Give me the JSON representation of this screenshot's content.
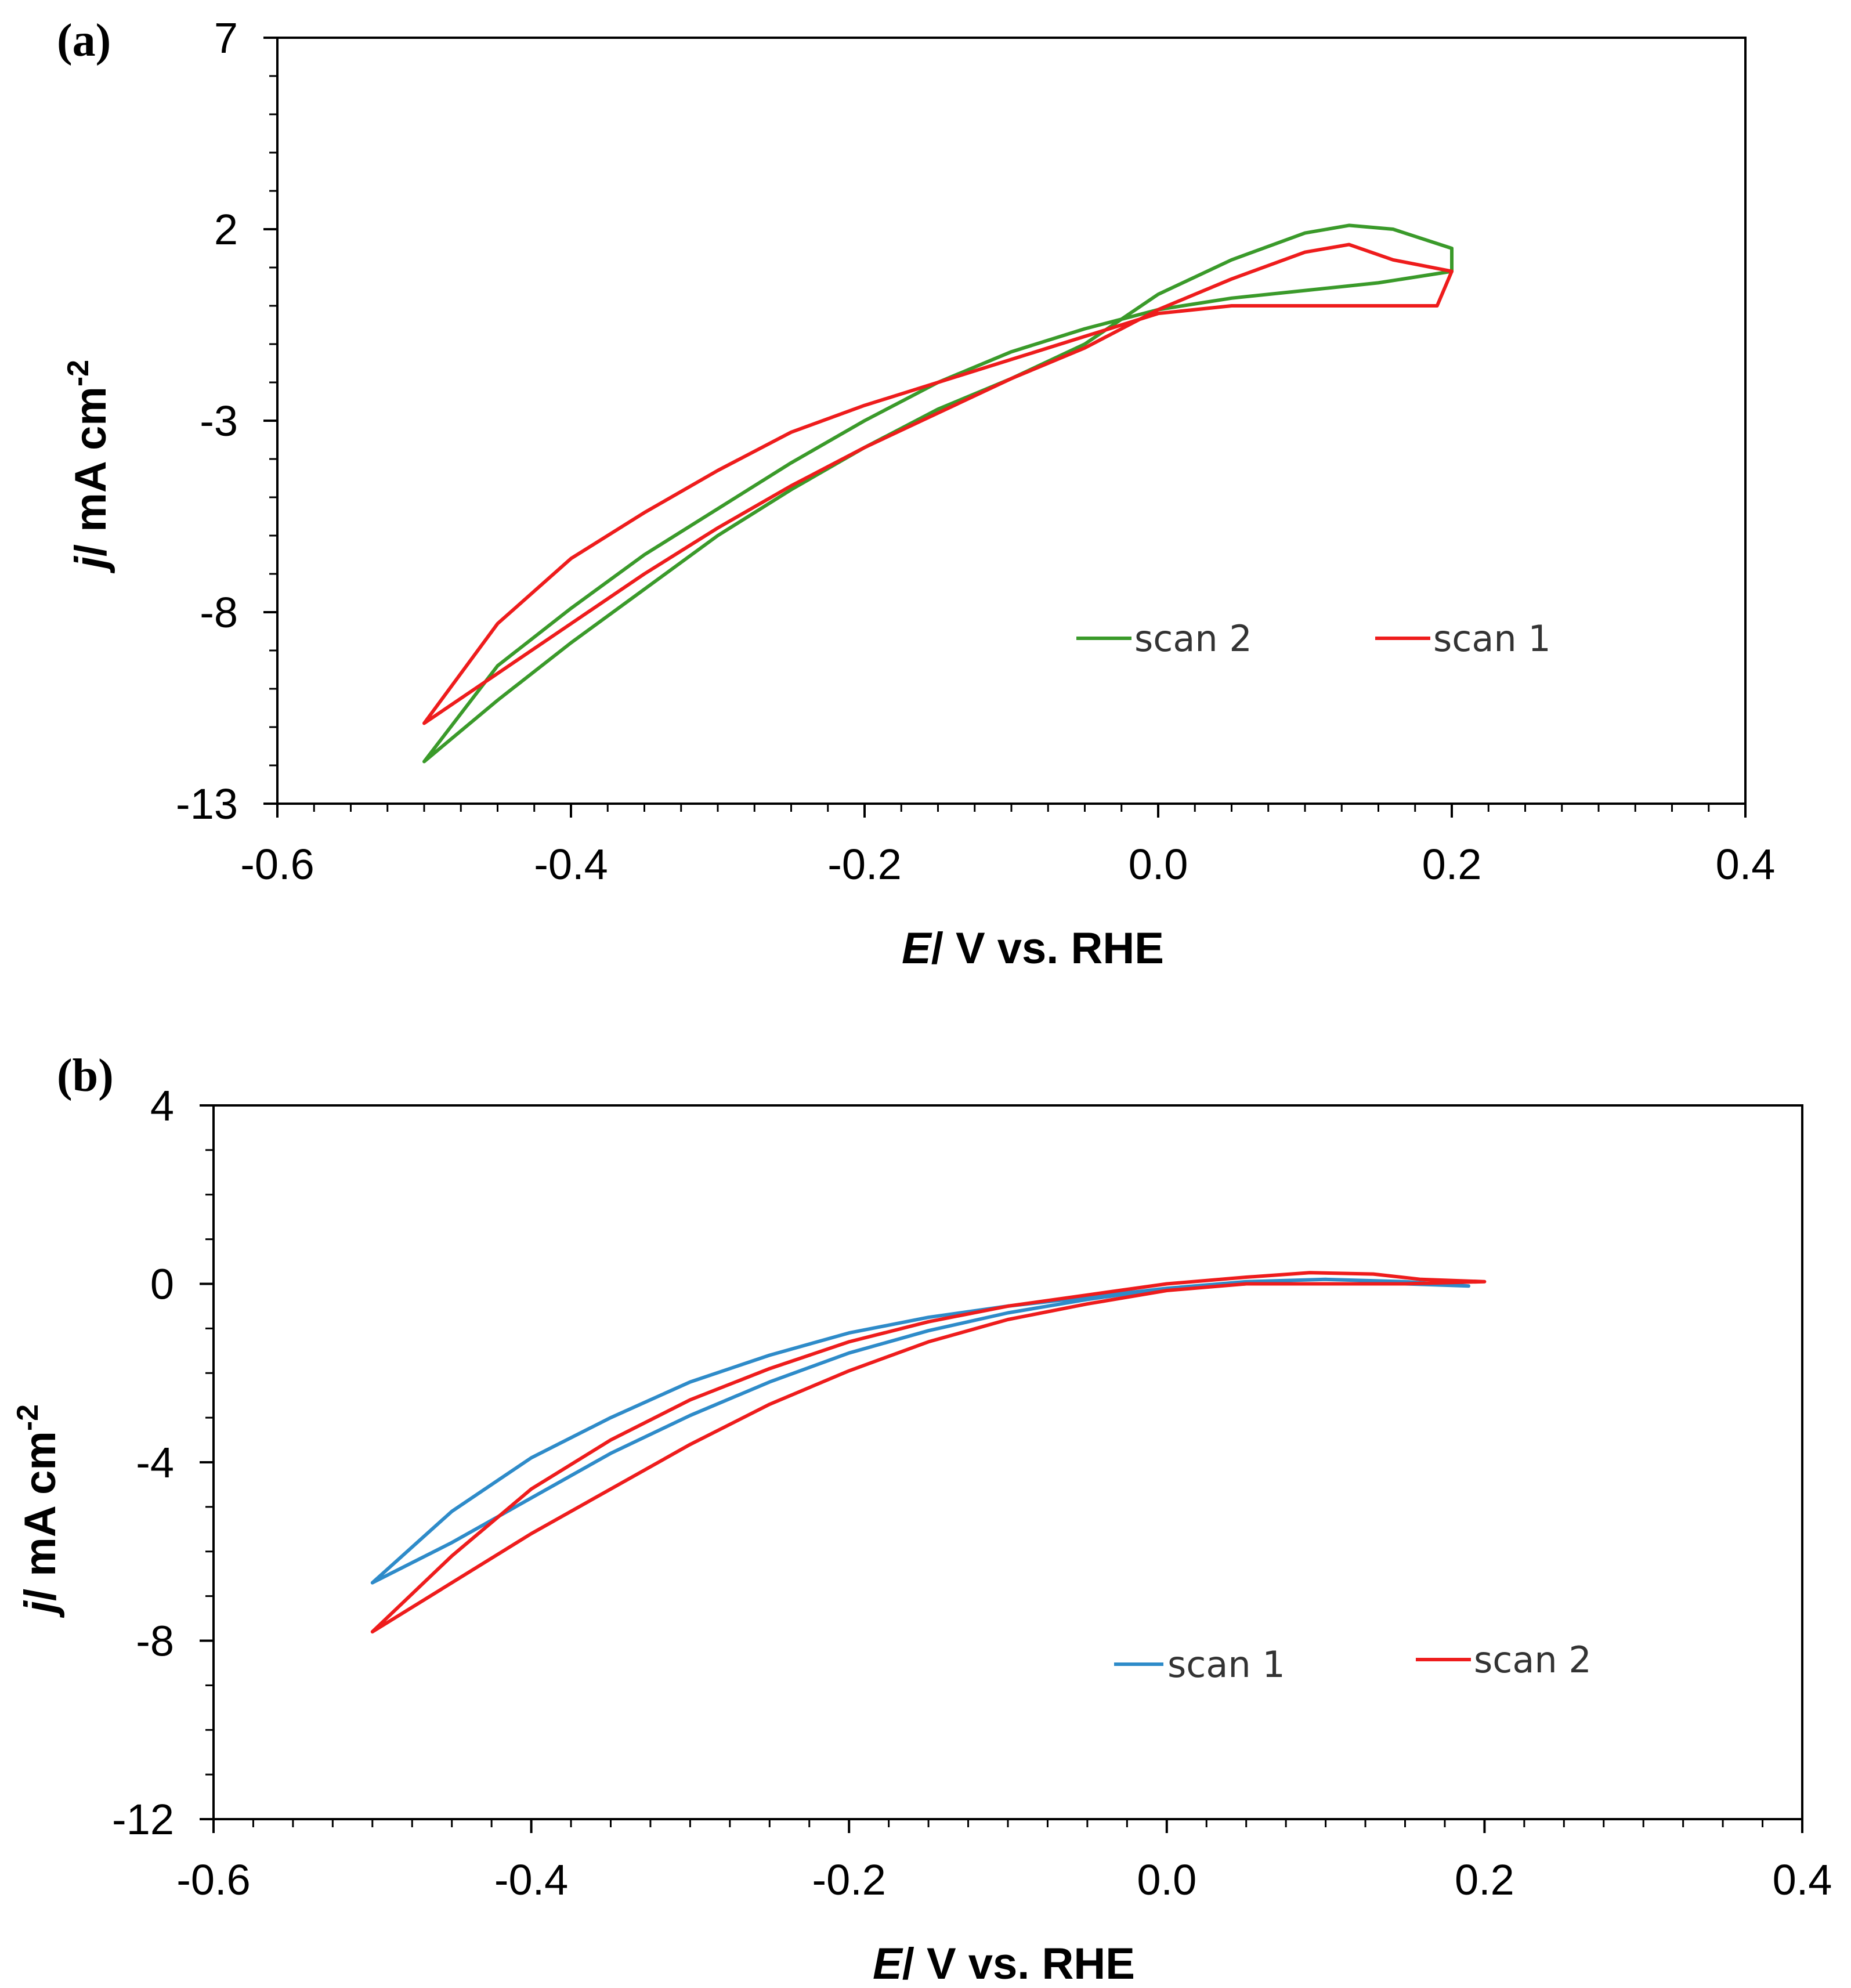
{
  "chart_data": [
    {
      "type": "line",
      "panel_label": "(a)",
      "xlabel_italic": "E",
      "xlabel_rest": "/ V  vs. RHE",
      "ylabel_italic": "j",
      "ylabel_rest": "/ mA cm",
      "ylabel_sup": "-2",
      "xlim": [
        -0.6,
        0.4
      ],
      "ylim": [
        -13,
        7
      ],
      "xticks": [
        -0.6,
        -0.4,
        -0.2,
        0.0,
        0.2,
        0.4
      ],
      "xtick_labels": [
        "-0.6",
        "-0.4",
        "-0.2",
        "0.0",
        "0.2",
        "0.4"
      ],
      "yticks": [
        7,
        2,
        -3,
        -8,
        -13
      ],
      "ytick_labels": [
        "7",
        "2",
        "-3",
        "-8",
        "-13"
      ],
      "legend": [
        "scan 2",
        "scan 1"
      ],
      "series": [
        {
          "name": "scan 2",
          "color": "#3a9a2a",
          "x": [
            -0.5,
            -0.45,
            -0.4,
            -0.35,
            -0.3,
            -0.25,
            -0.2,
            -0.15,
            -0.1,
            -0.05,
            0.0,
            0.05,
            0.1,
            0.13,
            0.16,
            0.2,
            0.2,
            0.15,
            0.1,
            0.05,
            0.0,
            -0.05,
            -0.1,
            -0.15,
            -0.2,
            -0.25,
            -0.3,
            -0.35,
            -0.4,
            -0.45,
            -0.5
          ],
          "y": [
            -11.9,
            -10.3,
            -8.8,
            -7.4,
            -6.0,
            -4.8,
            -3.7,
            -2.7,
            -1.9,
            -1.0,
            0.3,
            1.2,
            1.9,
            2.1,
            2.0,
            1.5,
            0.9,
            0.6,
            0.4,
            0.2,
            -0.1,
            -0.6,
            -1.2,
            -2.0,
            -3.0,
            -4.1,
            -5.3,
            -6.5,
            -7.9,
            -9.4,
            -11.9
          ]
        },
        {
          "name": "scan 1",
          "color": "#ee1c1c",
          "x": [
            -0.5,
            -0.45,
            -0.4,
            -0.35,
            -0.3,
            -0.25,
            -0.2,
            -0.15,
            -0.1,
            -0.05,
            0.0,
            0.05,
            0.1,
            0.13,
            0.16,
            0.2,
            0.19,
            0.15,
            0.1,
            0.05,
            0.0,
            -0.05,
            -0.1,
            -0.15,
            -0.2,
            -0.25,
            -0.3,
            -0.35,
            -0.4,
            -0.45,
            -0.5
          ],
          "y": [
            -10.9,
            -9.6,
            -8.3,
            -7.0,
            -5.8,
            -4.7,
            -3.7,
            -2.8,
            -1.9,
            -1.1,
            -0.1,
            0.7,
            1.4,
            1.6,
            1.2,
            0.9,
            0.0,
            0.0,
            0.0,
            0.0,
            -0.2,
            -0.8,
            -1.4,
            -2.0,
            -2.6,
            -3.3,
            -4.3,
            -5.4,
            -6.6,
            -8.3,
            -10.9
          ]
        }
      ]
    },
    {
      "type": "line",
      "panel_label": "(b)",
      "xlabel_italic": "E",
      "xlabel_rest": "/ V  vs. RHE",
      "ylabel_italic": "j",
      "ylabel_rest": "/ mA cm",
      "ylabel_sup": "-2",
      "xlim": [
        -0.6,
        0.4
      ],
      "ylim": [
        -12,
        4
      ],
      "xticks": [
        -0.6,
        -0.4,
        -0.2,
        0.0,
        0.2,
        0.4
      ],
      "xtick_labels": [
        "-0.6",
        "-0.4",
        "-0.2",
        "0.0",
        "0.2",
        "0.4"
      ],
      "yticks": [
        4,
        0,
        -4,
        -8,
        -12
      ],
      "ytick_labels": [
        "4",
        "0",
        "-4",
        "-8",
        "-12"
      ],
      "legend": [
        "scan 1",
        "scan 2"
      ],
      "series": [
        {
          "name": "scan 1",
          "color": "#2e8bc9",
          "x": [
            -0.5,
            -0.45,
            -0.4,
            -0.35,
            -0.3,
            -0.25,
            -0.2,
            -0.15,
            -0.1,
            -0.05,
            0.0,
            0.05,
            0.1,
            0.15,
            0.19,
            0.15,
            0.1,
            0.05,
            0.0,
            -0.05,
            -0.1,
            -0.15,
            -0.2,
            -0.25,
            -0.3,
            -0.35,
            -0.4,
            -0.45,
            -0.5
          ],
          "y": [
            -6.7,
            -5.1,
            -3.9,
            -3.0,
            -2.2,
            -1.6,
            -1.1,
            -0.75,
            -0.5,
            -0.3,
            -0.1,
            0.05,
            0.1,
            0.05,
            -0.05,
            0.0,
            0.0,
            0.0,
            -0.1,
            -0.35,
            -0.65,
            -1.05,
            -1.55,
            -2.2,
            -2.95,
            -3.8,
            -4.8,
            -5.8,
            -6.7
          ]
        },
        {
          "name": "scan 2",
          "color": "#ee1c1c",
          "x": [
            -0.5,
            -0.45,
            -0.4,
            -0.35,
            -0.3,
            -0.25,
            -0.2,
            -0.15,
            -0.1,
            -0.05,
            0.0,
            0.05,
            0.09,
            0.13,
            0.16,
            0.2,
            0.15,
            0.1,
            0.05,
            0.0,
            -0.05,
            -0.1,
            -0.15,
            -0.2,
            -0.25,
            -0.3,
            -0.35,
            -0.4,
            -0.45,
            -0.5
          ],
          "y": [
            -7.8,
            -6.1,
            -4.6,
            -3.5,
            -2.6,
            -1.9,
            -1.3,
            -0.85,
            -0.5,
            -0.25,
            0.0,
            0.15,
            0.25,
            0.22,
            0.1,
            0.05,
            0.0,
            0.0,
            0.0,
            -0.15,
            -0.45,
            -0.8,
            -1.3,
            -1.95,
            -2.7,
            -3.6,
            -4.6,
            -5.6,
            -6.7,
            -7.8
          ]
        }
      ]
    }
  ]
}
